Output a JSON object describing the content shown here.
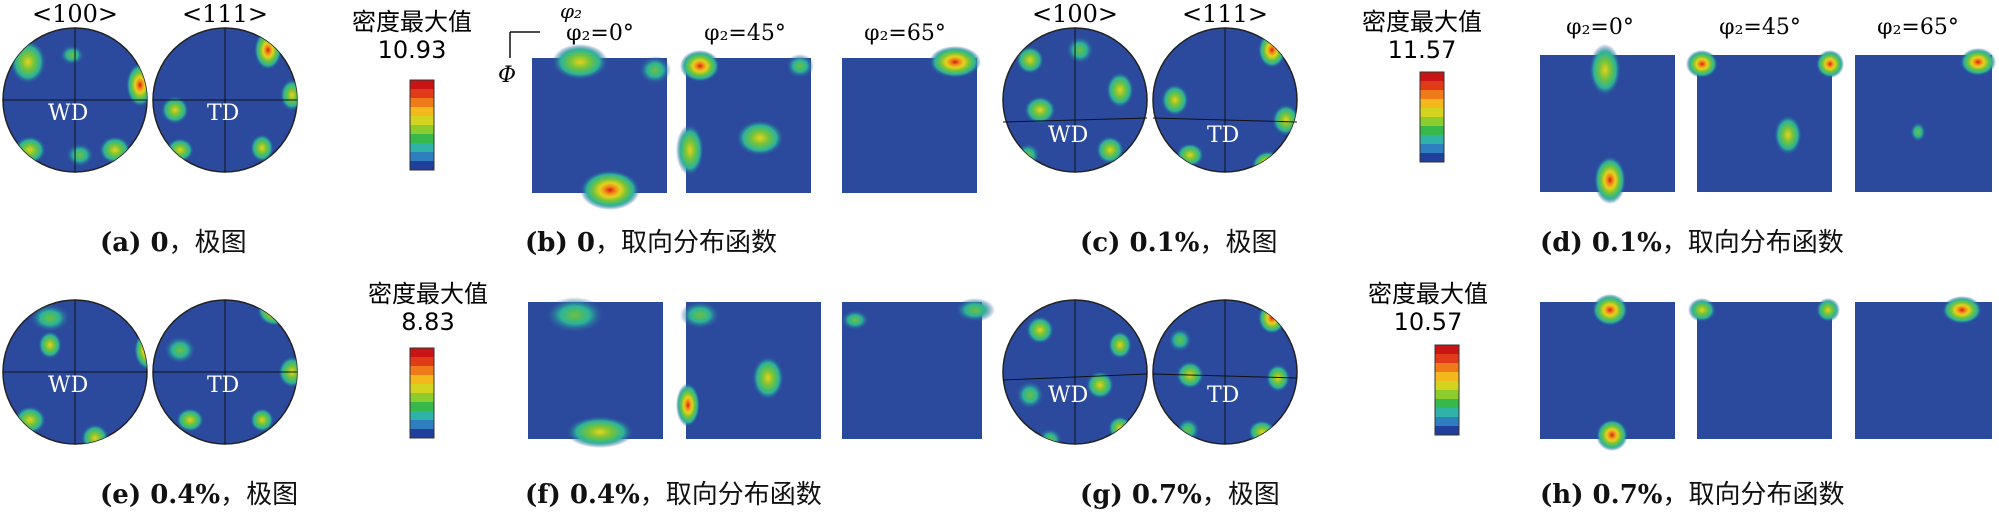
{
  "labels": {
    "pf_100": "<100>",
    "pf_111": "<111>",
    "wd": "WD",
    "td": "TD",
    "density_max": "密度最大值",
    "phi2": "φ₂",
    "Phi": "Φ",
    "phi2_0": "φ₂=0°",
    "phi2_45": "φ₂=45°",
    "phi2_65": "φ₂=65°"
  },
  "panels": [
    {
      "id": "a",
      "cap_prefix": "(a) 0",
      "cap_suffix": "，极图",
      "max_value": "10.93"
    },
    {
      "id": "b",
      "cap_prefix": "(b) 0",
      "cap_suffix": "，取向分布函数"
    },
    {
      "id": "c",
      "cap_prefix": "(c) 0.1%",
      "cap_suffix": "，极图",
      "max_value": "11.57"
    },
    {
      "id": "d",
      "cap_prefix": "(d) 0.1%",
      "cap_suffix": "，取向分布函数"
    },
    {
      "id": "e",
      "cap_prefix": "(e) 0.4%",
      "cap_suffix": "，极图",
      "max_value": "8.83"
    },
    {
      "id": "f",
      "cap_prefix": "(f) 0.4%",
      "cap_suffix": "，取向分布函数"
    },
    {
      "id": "g",
      "cap_prefix": "(g) 0.7%",
      "cap_suffix": "，极图",
      "max_value": "10.57"
    },
    {
      "id": "h",
      "cap_prefix": "(h) 0.7%",
      "cap_suffix": "，取向分布函数"
    }
  ],
  "colors": {
    "background_blue": "#2b4a9e",
    "colorbar": [
      "#1f3f9a",
      "#2f7fc0",
      "#2fb3a8",
      "#37b84a",
      "#8ccc2c",
      "#d4d420",
      "#f2b81c",
      "#ee7a1a",
      "#e03a18",
      "#c81414"
    ]
  }
}
